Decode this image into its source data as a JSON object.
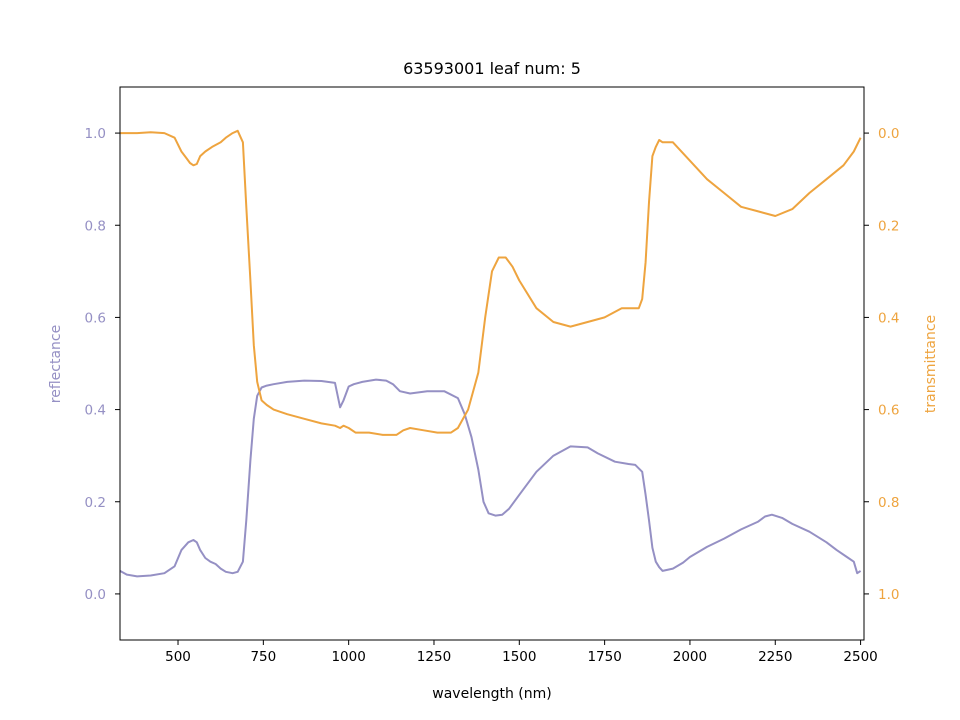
{
  "chart_data": {
    "type": "line",
    "title": "63593001 leaf num: 5",
    "xlabel": "wavelength (nm)",
    "ylabel_left": "reflectance",
    "ylabel_right": "transmittance",
    "xlim": [
      330,
      2510
    ],
    "ylim_left": [
      -0.1,
      1.1
    ],
    "ylim_right": [
      1.1,
      -0.1
    ],
    "right_axis_inverted": true,
    "x_ticks": [
      500,
      750,
      1000,
      1250,
      1500,
      1750,
      2000,
      2250,
      2500
    ],
    "x_tick_labels": [
      "500",
      "750",
      "1000",
      "1250",
      "1500",
      "1750",
      "2000",
      "2250",
      "2500"
    ],
    "yleft_ticks": [
      0.0,
      0.2,
      0.4,
      0.6,
      0.8,
      1.0
    ],
    "yleft_tick_labels": [
      "0.0",
      "0.2",
      "0.4",
      "0.6",
      "0.8",
      "1.0"
    ],
    "yright_ticks": [
      0.0,
      0.2,
      0.4,
      0.6,
      0.8,
      1.0
    ],
    "yright_tick_labels": [
      "0.0",
      "0.2",
      "0.4",
      "0.6",
      "0.8",
      "1.0"
    ],
    "grid": false,
    "legend": "none",
    "colors": {
      "reflectance": "#9590c4",
      "transmittance": "#eea43f"
    },
    "series": [
      {
        "axis": "left",
        "x": [
          330,
          350,
          380,
          420,
          460,
          490,
          510,
          530,
          545,
          555,
          565,
          580,
          595,
          610,
          625,
          640,
          660,
          675,
          690,
          700,
          712,
          722,
          732,
          745,
          760,
          780,
          820,
          870,
          920,
          960,
          975,
          985,
          1000,
          1015,
          1040,
          1080,
          1110,
          1130,
          1150,
          1180,
          1230,
          1280,
          1320,
          1340,
          1360,
          1380,
          1395,
          1410,
          1430,
          1450,
          1470,
          1500,
          1550,
          1600,
          1650,
          1700,
          1730,
          1780,
          1820,
          1840,
          1860,
          1870,
          1880,
          1890,
          1900,
          1910,
          1920,
          1950,
          1980,
          2000,
          2050,
          2100,
          2150,
          2200,
          2220,
          2240,
          2270,
          2300,
          2350,
          2400,
          2430,
          2460,
          2480,
          2490,
          2500
        ],
        "y": [
          0.05,
          0.042,
          0.038,
          0.04,
          0.045,
          0.06,
          0.095,
          0.112,
          0.117,
          0.112,
          0.095,
          0.078,
          0.07,
          0.065,
          0.055,
          0.048,
          0.045,
          0.048,
          0.07,
          0.16,
          0.29,
          0.38,
          0.43,
          0.448,
          0.452,
          0.455,
          0.46,
          0.463,
          0.462,
          0.458,
          0.405,
          0.42,
          0.45,
          0.455,
          0.46,
          0.465,
          0.463,
          0.455,
          0.44,
          0.435,
          0.44,
          0.44,
          0.425,
          0.39,
          0.34,
          0.27,
          0.2,
          0.175,
          0.17,
          0.172,
          0.185,
          0.215,
          0.265,
          0.3,
          0.32,
          0.318,
          0.305,
          0.287,
          0.282,
          0.28,
          0.265,
          0.215,
          0.16,
          0.1,
          0.07,
          0.058,
          0.05,
          0.055,
          0.068,
          0.08,
          0.102,
          0.12,
          0.14,
          0.157,
          0.168,
          0.172,
          0.165,
          0.152,
          0.135,
          0.112,
          0.095,
          0.08,
          0.07,
          0.045,
          0.05
        ]
      },
      {
        "axis": "right",
        "x": [
          330,
          350,
          380,
          420,
          460,
          490,
          510,
          525,
          535,
          545,
          555,
          565,
          580,
          600,
          625,
          640,
          660,
          675,
          690,
          700,
          712,
          722,
          732,
          745,
          760,
          780,
          820,
          870,
          920,
          960,
          975,
          985,
          1000,
          1020,
          1060,
          1100,
          1140,
          1160,
          1180,
          1220,
          1260,
          1300,
          1320,
          1350,
          1380,
          1400,
          1420,
          1440,
          1460,
          1480,
          1500,
          1550,
          1600,
          1650,
          1700,
          1750,
          1800,
          1850,
          1860,
          1870,
          1880,
          1890,
          1900,
          1910,
          1920,
          1950,
          2000,
          2050,
          2100,
          2150,
          2200,
          2250,
          2300,
          2350,
          2400,
          2450,
          2480,
          2500
        ],
        "y": [
          0.0,
          0.0,
          0.0,
          -0.002,
          0.0,
          0.01,
          0.04,
          0.055,
          0.065,
          0.07,
          0.067,
          0.05,
          0.04,
          0.03,
          0.02,
          0.01,
          0.0,
          -0.005,
          0.02,
          0.16,
          0.32,
          0.46,
          0.54,
          0.58,
          0.59,
          0.6,
          0.61,
          0.62,
          0.63,
          0.635,
          0.64,
          0.635,
          0.64,
          0.65,
          0.65,
          0.655,
          0.655,
          0.645,
          0.64,
          0.645,
          0.65,
          0.65,
          0.64,
          0.6,
          0.52,
          0.4,
          0.3,
          0.27,
          0.27,
          0.29,
          0.32,
          0.38,
          0.41,
          0.42,
          0.41,
          0.4,
          0.38,
          0.38,
          0.36,
          0.28,
          0.15,
          0.05,
          0.03,
          0.015,
          0.02,
          0.02,
          0.06,
          0.1,
          0.13,
          0.16,
          0.17,
          0.18,
          0.165,
          0.13,
          0.1,
          0.07,
          0.04,
          0.01
        ]
      }
    ]
  }
}
